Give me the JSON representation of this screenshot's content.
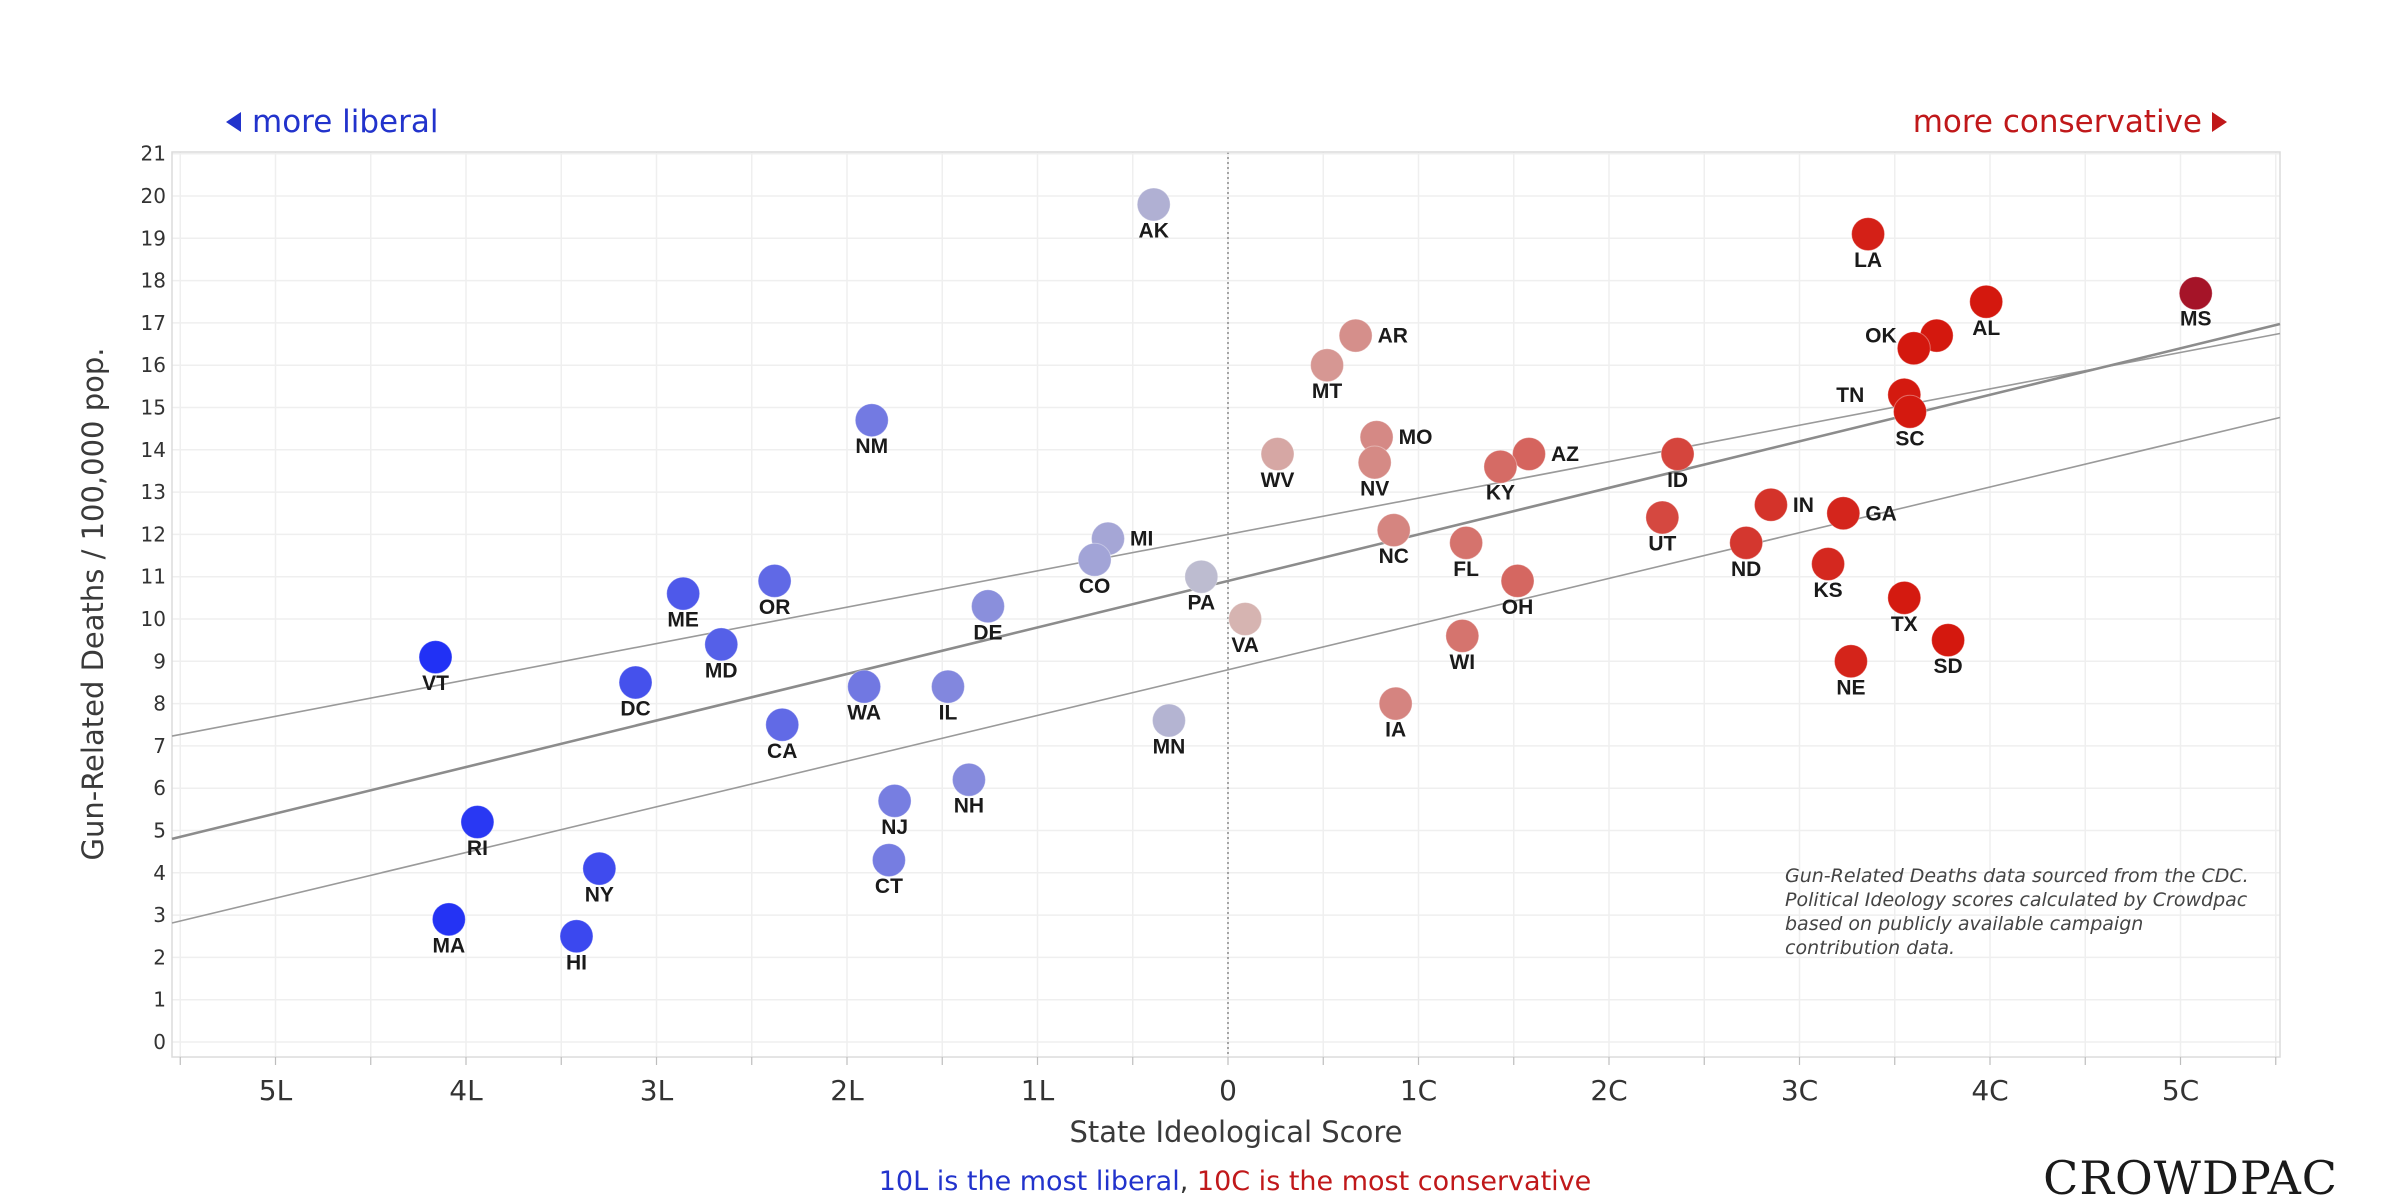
{
  "header": {
    "liberal_label": "more liberal",
    "conservative_label": "more conservative",
    "liberal_color": "#2233cc",
    "conservative_color": "#c0181a"
  },
  "chart_data": {
    "type": "scatter",
    "xlabel": "State Ideological Score",
    "ylabel": "Gun-Related Deaths / 100,000 pop.",
    "xlim": [
      -5.5,
      5.5
    ],
    "ylim": [
      0,
      21
    ],
    "x_ticks": [
      {
        "value": -5,
        "label": "5L"
      },
      {
        "value": -4,
        "label": "4L"
      },
      {
        "value": -3,
        "label": "3L"
      },
      {
        "value": -2,
        "label": "2L"
      },
      {
        "value": -1,
        "label": "1L"
      },
      {
        "value": 0,
        "label": "0"
      },
      {
        "value": 1,
        "label": "1C"
      },
      {
        "value": 2,
        "label": "2C"
      },
      {
        "value": 3,
        "label": "3C"
      },
      {
        "value": 4,
        "label": "4C"
      },
      {
        "value": 5,
        "label": "5C"
      }
    ],
    "y_ticks": [
      0,
      1,
      2,
      3,
      4,
      5,
      6,
      7,
      8,
      9,
      10,
      11,
      12,
      13,
      14,
      15,
      16,
      17,
      18,
      19,
      20,
      21
    ],
    "grid": true,
    "zero_reference_line": true,
    "trend_line": {
      "slope": 1.1,
      "intercept": 10.9
    },
    "confidence_band": {
      "upper": {
        "slope": 0.86,
        "intercept": 12.0
      },
      "lower": {
        "slope": 1.08,
        "intercept": 8.8
      }
    },
    "points": [
      {
        "label": "AK",
        "x": -0.39,
        "y": 19.8
      },
      {
        "label": "LA",
        "x": 3.36,
        "y": 19.1
      },
      {
        "label": "MS",
        "x": 5.08,
        "y": 17.7
      },
      {
        "label": "AL",
        "x": 3.98,
        "y": 17.5
      },
      {
        "label": "AR",
        "x": 0.67,
        "y": 16.7
      },
      {
        "label": "OK",
        "x": 3.72,
        "y": 16.7
      },
      {
        "label": "OK2",
        "x": 3.6,
        "y": 16.4
      },
      {
        "label": "MT",
        "x": 0.52,
        "y": 16.0
      },
      {
        "label": "TN",
        "x": 3.55,
        "y": 15.3
      },
      {
        "label": "SC",
        "x": 3.58,
        "y": 14.9
      },
      {
        "label": "NM",
        "x": -1.87,
        "y": 14.7
      },
      {
        "label": "MO",
        "x": 0.78,
        "y": 14.3
      },
      {
        "label": "WV",
        "x": 0.26,
        "y": 13.9
      },
      {
        "label": "ID",
        "x": 2.36,
        "y": 13.9
      },
      {
        "label": "AZ",
        "x": 1.58,
        "y": 13.9
      },
      {
        "label": "NV",
        "x": 0.77,
        "y": 13.7
      },
      {
        "label": "KY",
        "x": 1.43,
        "y": 13.6
      },
      {
        "label": "IN",
        "x": 2.85,
        "y": 12.7
      },
      {
        "label": "GA",
        "x": 3.23,
        "y": 12.5
      },
      {
        "label": "UT",
        "x": 2.28,
        "y": 12.4
      },
      {
        "label": "NC",
        "x": 0.87,
        "y": 12.1
      },
      {
        "label": "MI",
        "x": -0.63,
        "y": 11.9
      },
      {
        "label": "ND",
        "x": 2.72,
        "y": 11.8
      },
      {
        "label": "FL",
        "x": 1.25,
        "y": 11.8
      },
      {
        "label": "CO",
        "x": -0.7,
        "y": 11.4
      },
      {
        "label": "KS",
        "x": 3.15,
        "y": 11.3
      },
      {
        "label": "PA",
        "x": -0.14,
        "y": 11.0
      },
      {
        "label": "OH",
        "x": 1.52,
        "y": 10.9
      },
      {
        "label": "OR",
        "x": -2.38,
        "y": 10.9
      },
      {
        "label": "ME",
        "x": -2.86,
        "y": 10.6
      },
      {
        "label": "TX",
        "x": 3.55,
        "y": 10.5
      },
      {
        "label": "DE",
        "x": -1.26,
        "y": 10.3
      },
      {
        "label": "VA",
        "x": 0.09,
        "y": 10.0
      },
      {
        "label": "WI",
        "x": 1.23,
        "y": 9.6
      },
      {
        "label": "SD",
        "x": 3.78,
        "y": 9.5
      },
      {
        "label": "MD",
        "x": -2.66,
        "y": 9.4
      },
      {
        "label": "VT",
        "x": -4.16,
        "y": 9.1
      },
      {
        "label": "NE",
        "x": 3.27,
        "y": 9.0
      },
      {
        "label": "DC",
        "x": -3.11,
        "y": 8.5
      },
      {
        "label": "WA",
        "x": -1.91,
        "y": 8.4
      },
      {
        "label": "IL",
        "x": -1.47,
        "y": 8.4
      },
      {
        "label": "IA",
        "x": 0.88,
        "y": 8.0
      },
      {
        "label": "MN",
        "x": -0.31,
        "y": 7.6
      },
      {
        "label": "CA",
        "x": -2.34,
        "y": 7.5
      },
      {
        "label": "NH",
        "x": -1.36,
        "y": 6.2
      },
      {
        "label": "NJ",
        "x": -1.75,
        "y": 5.7
      },
      {
        "label": "RI",
        "x": -3.94,
        "y": 5.2
      },
      {
        "label": "CT",
        "x": -1.78,
        "y": 4.3
      },
      {
        "label": "NY",
        "x": -3.3,
        "y": 4.1
      },
      {
        "label": "MA",
        "x": -4.09,
        "y": 2.9
      },
      {
        "label": "HI",
        "x": -3.42,
        "y": 2.5
      }
    ]
  },
  "note": {
    "lines": [
      "Gun-Related Deaths data sourced from the CDC.",
      "Political Ideology scores calculated by Crowdpac",
      "based on publicly available campaign",
      "contribution data."
    ]
  },
  "brand": "CROWDPAC",
  "footer": {
    "liberal_part": "10L is the most liberal",
    "separator": ",",
    "conservative_part": " 10C is the most conservative"
  }
}
